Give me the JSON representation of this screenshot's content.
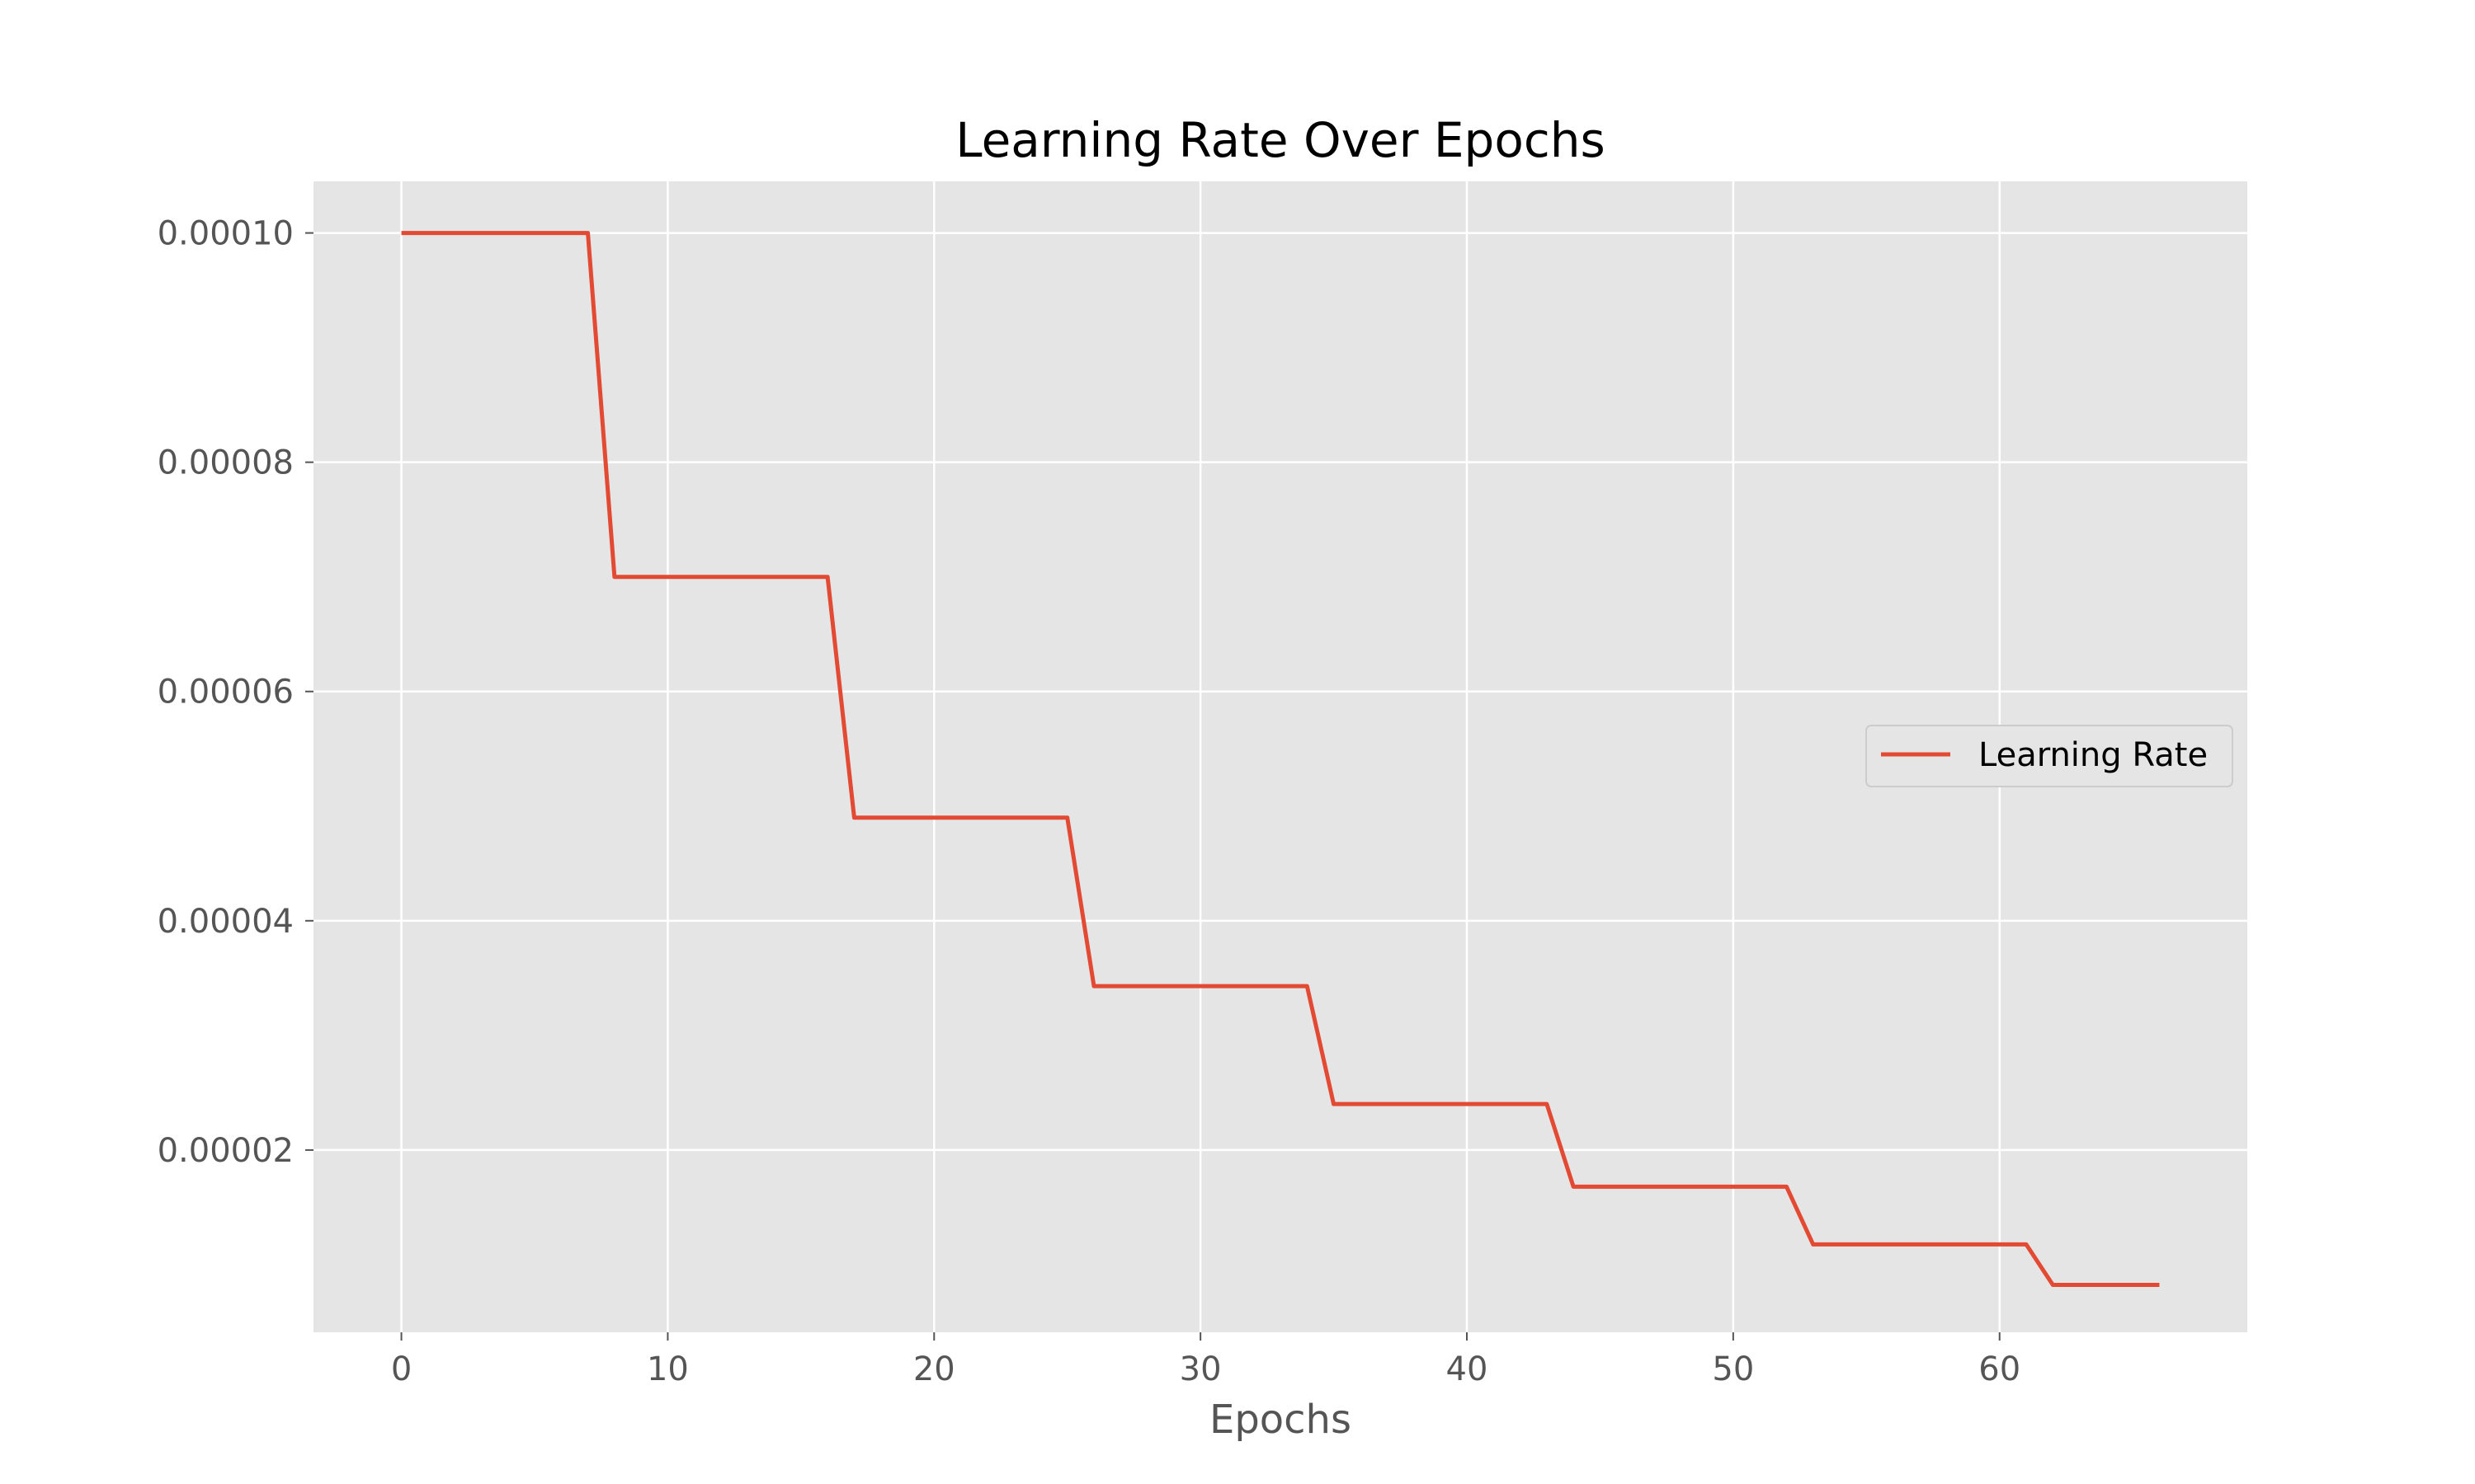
{
  "chart_data": {
    "type": "line",
    "title": "Learning Rate Over Epochs",
    "xlabel": "Epochs",
    "ylabel": "",
    "xlim": [
      -3.3,
      69.3
    ],
    "ylim": [
      4.1e-06,
      0.0001045
    ],
    "xticks": [
      0,
      10,
      20,
      30,
      40,
      50,
      60
    ],
    "xtick_labels": [
      "0",
      "10",
      "20",
      "30",
      "40",
      "50",
      "60"
    ],
    "yticks": [
      2e-05,
      4e-05,
      6e-05,
      8e-05,
      0.0001
    ],
    "ytick_labels": [
      "0.00002",
      "0.00004",
      "0.00006",
      "0.00008",
      "0.00010"
    ],
    "grid": true,
    "legend_position": "center-right",
    "colors": {
      "plot_background": "#e5e5e5",
      "grid": "#ffffff",
      "line": "#e24a33"
    },
    "series": [
      {
        "name": "Learning Rate",
        "x": [
          0,
          1,
          2,
          3,
          4,
          5,
          6,
          7,
          8,
          9,
          10,
          11,
          12,
          13,
          14,
          15,
          16,
          17,
          18,
          19,
          20,
          21,
          22,
          23,
          24,
          25,
          26,
          27,
          28,
          29,
          30,
          31,
          32,
          33,
          34,
          35,
          36,
          37,
          38,
          39,
          40,
          41,
          42,
          43,
          44,
          45,
          46,
          47,
          48,
          49,
          50,
          51,
          52,
          53,
          54,
          55,
          56,
          57,
          58,
          59,
          60,
          61,
          62,
          63,
          64,
          65,
          66
        ],
        "y": [
          0.0001,
          0.0001,
          0.0001,
          0.0001,
          0.0001,
          0.0001,
          0.0001,
          0.0001,
          7e-05,
          7e-05,
          7e-05,
          7e-05,
          7e-05,
          7e-05,
          7e-05,
          7e-05,
          7e-05,
          4.9e-05,
          4.9e-05,
          4.9e-05,
          4.9e-05,
          4.9e-05,
          4.9e-05,
          4.9e-05,
          4.9e-05,
          4.9e-05,
          3.43e-05,
          3.43e-05,
          3.43e-05,
          3.43e-05,
          3.43e-05,
          3.43e-05,
          3.43e-05,
          3.43e-05,
          3.43e-05,
          2.401e-05,
          2.401e-05,
          2.401e-05,
          2.401e-05,
          2.401e-05,
          2.401e-05,
          2.401e-05,
          2.401e-05,
          2.401e-05,
          1.6807e-05,
          1.6807e-05,
          1.6807e-05,
          1.6807e-05,
          1.6807e-05,
          1.6807e-05,
          1.6807e-05,
          1.6807e-05,
          1.6807e-05,
          1.17649e-05,
          1.17649e-05,
          1.17649e-05,
          1.17649e-05,
          1.17649e-05,
          1.17649e-05,
          1.17649e-05,
          1.17649e-05,
          1.17649e-05,
          8.23543e-06,
          8.23543e-06,
          8.23543e-06,
          8.23543e-06,
          8.23543e-06
        ]
      }
    ]
  }
}
